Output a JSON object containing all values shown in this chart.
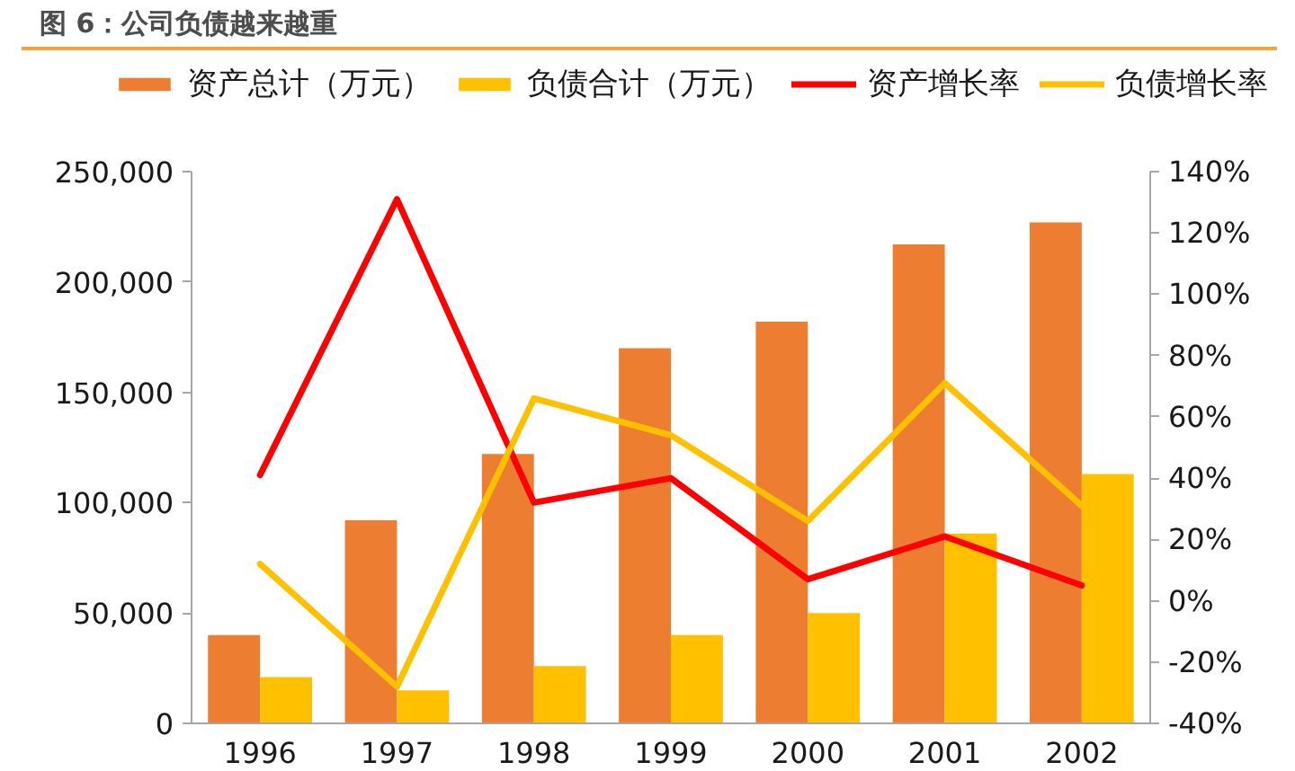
{
  "chart_data": {
    "type": "bar",
    "title": "图 6：公司负债越来越重",
    "categories": [
      "1996",
      "1997",
      "1998",
      "1999",
      "2000",
      "2001",
      "2002"
    ],
    "series": [
      {
        "name": "资产总计（万元）",
        "color": "#ed7d31",
        "values": [
          40000,
          92000,
          122000,
          170000,
          182000,
          217000,
          227000
        ]
      },
      {
        "name": "负债合计（万元）",
        "color": "#ffc000",
        "values": [
          21000,
          15000,
          26000,
          40000,
          50000,
          86000,
          113000
        ]
      },
      {
        "name": "资产增长率",
        "type": "line",
        "axis": "y2",
        "color": "#ff0000",
        "values": [
          41,
          131,
          32,
          40,
          7,
          21,
          5
        ]
      },
      {
        "name": "负债增长率",
        "type": "line",
        "axis": "y2",
        "color": "#ffc000",
        "values": [
          12,
          -28,
          66,
          54,
          26,
          71,
          31
        ]
      }
    ],
    "ylim": [
      0,
      250000
    ],
    "yticks": [
      0,
      {
        "value": 50000,
        "label": "50,000"
      },
      {
        "value": 100000,
        "label": "100,000"
      },
      {
        "value": 150000,
        "label": "150,000"
      },
      {
        "value": 200000,
        "label": "200,000"
      },
      {
        "value": 250000,
        "label": "250,000"
      }
    ],
    "y2lim": [
      -40,
      140
    ],
    "y2ticks": [
      {
        "value": -40,
        "label": "-40%"
      },
      {
        "value": -20,
        "label": "-20%"
      },
      {
        "value": 0,
        "label": "0%"
      },
      {
        "value": 20,
        "label": "20%"
      },
      {
        "value": 40,
        "label": "40%"
      },
      {
        "value": 60,
        "label": "60%"
      },
      {
        "value": 80,
        "label": "80%"
      },
      {
        "value": 100,
        "label": "100%"
      },
      {
        "value": 120,
        "label": "120%"
      },
      {
        "value": 140,
        "label": "140%"
      }
    ],
    "legend": "top",
    "grid": false
  }
}
